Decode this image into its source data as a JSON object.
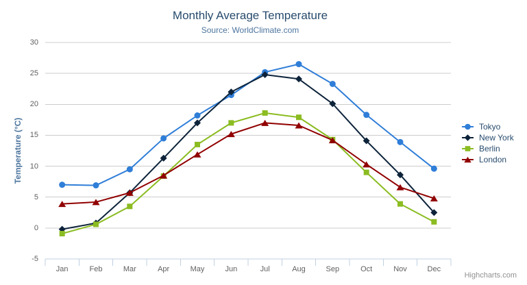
{
  "chart": {
    "credits_label": "Highcharts.com"
  },
  "icons": {
    "context_menu_icon": "hamburger-menu (three horizontal bars, chart export menu)"
  },
  "colors": {
    "title": "#274b6d",
    "subtitle": "#4d759e",
    "axis_title": "#4d759e",
    "tick_label": "#606060",
    "grid": "#cccccc",
    "axis_line": "#c0d0e0",
    "credits": "#909090",
    "burger": "#666666",
    "legend_text": "#274b6d"
  },
  "chart_data": {
    "type": "line",
    "title": "Monthly Average Temperature",
    "subtitle": "Source: WorldClimate.com",
    "categories": [
      "Jan",
      "Feb",
      "Mar",
      "Apr",
      "May",
      "Jun",
      "Jul",
      "Aug",
      "Sep",
      "Oct",
      "Nov",
      "Dec"
    ],
    "series": [
      {
        "name": "Tokyo",
        "color": "#2f7ed8",
        "marker": "circle",
        "values": [
          7.0,
          6.9,
          9.5,
          14.5,
          18.2,
          21.5,
          25.2,
          26.5,
          23.3,
          18.3,
          13.9,
          9.6
        ]
      },
      {
        "name": "New York",
        "color": "#0d233a",
        "marker": "diamond",
        "values": [
          -0.2,
          0.8,
          5.7,
          11.3,
          17.0,
          22.0,
          24.8,
          24.1,
          20.1,
          14.1,
          8.6,
          2.5
        ]
      },
      {
        "name": "Berlin",
        "color": "#8bbc21",
        "marker": "square",
        "values": [
          -0.9,
          0.6,
          3.5,
          8.4,
          13.5,
          17.0,
          18.6,
          17.9,
          14.3,
          9.0,
          3.9,
          1.0
        ]
      },
      {
        "name": "London",
        "color": "#910000",
        "marker": "triangle",
        "values": [
          3.9,
          4.2,
          5.7,
          8.5,
          11.9,
          15.2,
          17.0,
          16.6,
          14.2,
          10.3,
          6.6,
          4.8
        ]
      }
    ],
    "xlabel": "",
    "ylabel": "Temperature (°C)",
    "ylim": [
      -5,
      30
    ],
    "yticks": [
      -5,
      0,
      5,
      10,
      15,
      20,
      25,
      30
    ],
    "grid": true,
    "legend_position": "right"
  }
}
